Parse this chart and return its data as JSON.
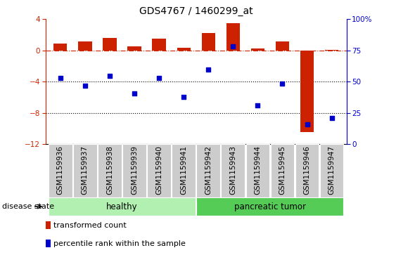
{
  "title": "GDS4767 / 1460299_at",
  "samples": [
    "GSM1159936",
    "GSM1159937",
    "GSM1159938",
    "GSM1159939",
    "GSM1159940",
    "GSM1159941",
    "GSM1159942",
    "GSM1159943",
    "GSM1159944",
    "GSM1159945",
    "GSM1159946",
    "GSM1159947"
  ],
  "bar_values": [
    0.9,
    1.1,
    1.6,
    0.5,
    1.5,
    0.3,
    2.2,
    3.5,
    0.2,
    1.1,
    -10.5,
    0.1
  ],
  "scatter_values": [
    -3.5,
    -4.5,
    -3.3,
    -5.5,
    -3.5,
    -6.0,
    -2.5,
    0.5,
    -7.0,
    -4.3,
    -9.5,
    -8.7
  ],
  "bar_color": "#cc2200",
  "scatter_color": "#0000cc",
  "ylim_left": [
    -12,
    4
  ],
  "ylim_right": [
    0,
    100
  ],
  "yticks_left": [
    4,
    0,
    -4,
    -8,
    -12
  ],
  "yticks_right": [
    100,
    75,
    50,
    25,
    0
  ],
  "ytick_right_labels": [
    "100%",
    "75",
    "50",
    "25",
    "0"
  ],
  "hline_y": 0,
  "dotted_lines": [
    -4,
    -8
  ],
  "groups": [
    {
      "label": "healthy",
      "start": 0,
      "end": 5,
      "color": "#b2f0b2"
    },
    {
      "label": "pancreatic tumor",
      "start": 6,
      "end": 11,
      "color": "#55cc55"
    }
  ],
  "disease_state_label": "disease state",
  "legend_items": [
    {
      "label": "transformed count",
      "color": "#cc2200"
    },
    {
      "label": "percentile rank within the sample",
      "color": "#0000cc"
    }
  ],
  "bar_width": 0.55,
  "title_fontsize": 10,
  "tick_fontsize": 7.5,
  "group_fontsize": 8.5,
  "legend_fontsize": 8
}
